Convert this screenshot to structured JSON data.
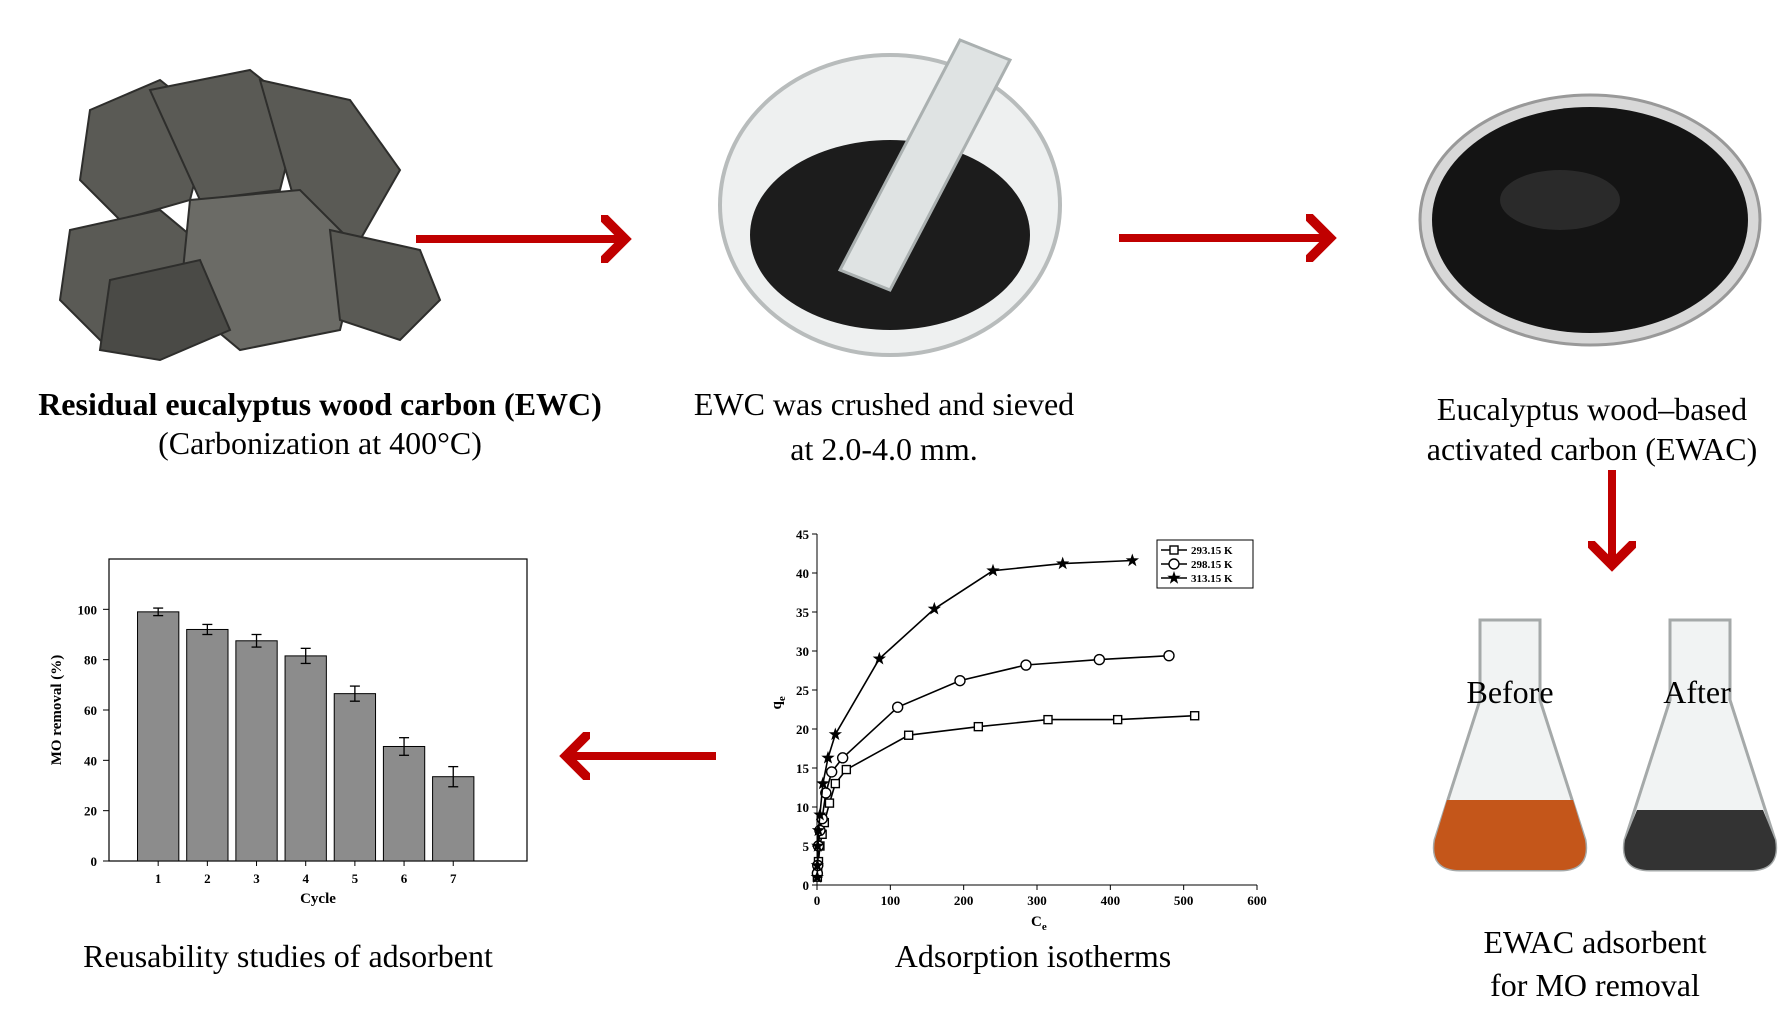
{
  "steps": {
    "carbon": {
      "title": "Residual eucalyptus wood carbon (EWC)",
      "note": "(Carbonization at 400°C)"
    },
    "crushed": {
      "lines": [
        "EWC was crushed and sieved",
        "at 2.0-4.0 mm."
      ]
    },
    "activated": {
      "lines": [
        "Eucalyptus wood–based",
        "activated carbon (EWAC)"
      ]
    },
    "adsorbent": {
      "before": "Before",
      "after": "After",
      "lines": [
        "EWAC adsorbent",
        "for MO removal"
      ]
    }
  },
  "chart_data": [
    {
      "type": "bar",
      "caption": "Reusability studies of adsorbent",
      "xlabel": "Cycle",
      "ylabel": "MO removal (%)",
      "categories": [
        "1",
        "2",
        "3",
        "4",
        "5",
        "6",
        "7"
      ],
      "values": [
        99,
        92,
        87.5,
        81.5,
        66.5,
        45.5,
        33.5
      ],
      "errors": [
        1.5,
        2,
        2.5,
        3,
        3,
        3.5,
        4
      ],
      "color": "#8c8c8c",
      "ylim": [
        0,
        120
      ],
      "yticks": [
        0,
        20,
        40,
        60,
        80,
        100
      ]
    },
    {
      "type": "line",
      "caption": "Adsorption isotherms",
      "xlabel": [
        "C",
        "e"
      ],
      "ylabel": [
        "q",
        "e"
      ],
      "xlim": [
        0,
        600
      ],
      "xticks": [
        0,
        100,
        200,
        300,
        400,
        500,
        600
      ],
      "ylim": [
        0,
        45
      ],
      "yticks": [
        0,
        5,
        10,
        15,
        20,
        25,
        30,
        35,
        40,
        45
      ],
      "legend": "upper right",
      "series": [
        {
          "name": "293.15 K",
          "color": "#000000",
          "marker": "square",
          "x": [
            0.5,
            1,
            2,
            4,
            7,
            10,
            17,
            25,
            40,
            125,
            220,
            315,
            410,
            515
          ],
          "y": [
            1,
            1.5,
            3,
            5,
            6.5,
            8,
            10.5,
            13,
            14.8,
            19.2,
            20.3,
            21.2,
            21.2,
            21.7
          ]
        },
        {
          "name": "298.15 K",
          "color": "#000000",
          "marker": "circle",
          "x": [
            0.5,
            1,
            2,
            4,
            7,
            12,
            20,
            35,
            110,
            195,
            285,
            385,
            480
          ],
          "y": [
            1.5,
            2.5,
            5,
            7,
            8.5,
            11.8,
            14.5,
            16.3,
            22.8,
            26.2,
            28.2,
            28.9,
            29.4
          ]
        },
        {
          "name": "313.15 K",
          "color": "#000000",
          "marker": "star",
          "x": [
            0.3,
            0.5,
            1,
            2,
            4,
            8,
            15,
            25,
            85,
            160,
            240,
            335,
            430
          ],
          "y": [
            1,
            2.5,
            5,
            7,
            9,
            13,
            16.3,
            19.3,
            29,
            35.4,
            40.3,
            41.2,
            41.6
          ]
        }
      ]
    }
  ]
}
